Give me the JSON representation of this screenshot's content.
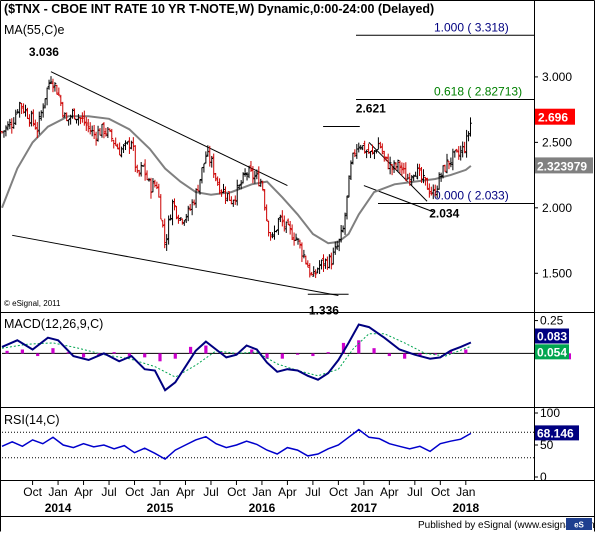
{
  "chart_data": [
    {
      "type": "candlestick",
      "title": "($TNX - CBOE INT RATE 10 YR T-NOTE,W) Dynamic,0:00-24:00 (Delayed)",
      "overlay_label": "MA(55,C)e",
      "copyright": "© eSignal, 2011",
      "ylim": [
        1.25,
        3.45
      ],
      "y_ticks": [
        "3.000",
        "2.500",
        "2.000",
        "1.500"
      ],
      "y_tick_values": [
        3.0,
        2.5,
        2.0,
        1.5
      ],
      "last_price": "2.696",
      "last_price_value": 2.696,
      "ma_value": "2.323979",
      "ma_value_num": 2.324,
      "ma_color": "#808080",
      "up_color": "#000000",
      "down_color": "#cc0000",
      "annotations": [
        {
          "text": "3.036",
          "t": 2013.93,
          "price": 3.036
        },
        {
          "text": "2.621",
          "t": 2016.96,
          "price": 2.621
        },
        {
          "text": "1.336",
          "t": 2016.5,
          "price": 1.336
        },
        {
          "text": "2.034",
          "t": 2017.7,
          "price": 2.034
        }
      ],
      "fibonacci": [
        {
          "label": "1.000 ( 3.318)",
          "value": 3.318,
          "color": "#000080"
        },
        {
          "label": "0.618 ( 2.82713)",
          "value": 2.82713,
          "color": "#008000"
        },
        {
          "label": "0.000 ( 2.033)",
          "value": 2.033,
          "color": "#000080"
        }
      ],
      "price_path": [
        [
          2013.45,
          2.58
        ],
        [
          2013.55,
          2.65
        ],
        [
          2013.62,
          2.8
        ],
        [
          2013.7,
          2.72
        ],
        [
          2013.8,
          2.6
        ],
        [
          2013.87,
          2.85
        ],
        [
          2013.93,
          3.0
        ],
        [
          2014.0,
          2.88
        ],
        [
          2014.08,
          2.65
        ],
        [
          2014.15,
          2.73
        ],
        [
          2014.25,
          2.66
        ],
        [
          2014.35,
          2.56
        ],
        [
          2014.45,
          2.6
        ],
        [
          2014.52,
          2.54
        ],
        [
          2014.6,
          2.44
        ],
        [
          2014.67,
          2.46
        ],
        [
          2014.72,
          2.52
        ],
        [
          2014.78,
          2.22
        ],
        [
          2014.83,
          2.32
        ],
        [
          2014.9,
          2.16
        ],
        [
          2014.97,
          2.18
        ],
        [
          2015.05,
          1.72
        ],
        [
          2015.12,
          2.04
        ],
        [
          2015.2,
          1.92
        ],
        [
          2015.28,
          1.96
        ],
        [
          2015.35,
          2.1
        ],
        [
          2015.45,
          2.4
        ],
        [
          2015.5,
          2.36
        ],
        [
          2015.57,
          2.18
        ],
        [
          2015.63,
          2.12
        ],
        [
          2015.7,
          2.06
        ],
        [
          2015.77,
          2.14
        ],
        [
          2015.85,
          2.27
        ],
        [
          2015.92,
          2.24
        ],
        [
          2016.0,
          2.2
        ],
        [
          2016.05,
          1.9
        ],
        [
          2016.1,
          1.75
        ],
        [
          2016.17,
          1.92
        ],
        [
          2016.25,
          1.83
        ],
        [
          2016.33,
          1.78
        ],
        [
          2016.42,
          1.62
        ],
        [
          2016.5,
          1.45
        ],
        [
          2016.55,
          1.55
        ],
        [
          2016.6,
          1.58
        ],
        [
          2016.68,
          1.6
        ],
        [
          2016.75,
          1.72
        ],
        [
          2016.8,
          1.84
        ],
        [
          2016.87,
          2.3
        ],
        [
          2016.92,
          2.46
        ],
        [
          2016.96,
          2.5
        ],
        [
          2017.0,
          2.45
        ],
        [
          2017.08,
          2.4
        ],
        [
          2017.15,
          2.5
        ],
        [
          2017.2,
          2.37
        ],
        [
          2017.28,
          2.3
        ],
        [
          2017.35,
          2.33
        ],
        [
          2017.42,
          2.22
        ],
        [
          2017.5,
          2.3
        ],
        [
          2017.57,
          2.21
        ],
        [
          2017.63,
          2.16
        ],
        [
          2017.68,
          2.1
        ],
        [
          2017.73,
          2.2
        ],
        [
          2017.8,
          2.32
        ],
        [
          2017.87,
          2.38
        ],
        [
          2017.93,
          2.4
        ],
        [
          2018.0,
          2.48
        ],
        [
          2018.05,
          2.66
        ]
      ],
      "ma_path": [
        [
          2013.45,
          2.0
        ],
        [
          2013.6,
          2.3
        ],
        [
          2013.75,
          2.5
        ],
        [
          2013.9,
          2.62
        ],
        [
          2014.1,
          2.7
        ],
        [
          2014.3,
          2.7
        ],
        [
          2014.5,
          2.68
        ],
        [
          2014.7,
          2.6
        ],
        [
          2014.9,
          2.45
        ],
        [
          2015.05,
          2.3
        ],
        [
          2015.2,
          2.2
        ],
        [
          2015.35,
          2.12
        ],
        [
          2015.5,
          2.1
        ],
        [
          2015.7,
          2.12
        ],
        [
          2015.9,
          2.18
        ],
        [
          2016.05,
          2.2
        ],
        [
          2016.2,
          2.08
        ],
        [
          2016.35,
          1.95
        ],
        [
          2016.5,
          1.8
        ],
        [
          2016.65,
          1.73
        ],
        [
          2016.75,
          1.74
        ],
        [
          2016.85,
          1.8
        ],
        [
          2016.95,
          1.95
        ],
        [
          2017.1,
          2.12
        ],
        [
          2017.3,
          2.18
        ],
        [
          2017.5,
          2.2
        ],
        [
          2017.7,
          2.22
        ],
        [
          2017.85,
          2.25
        ],
        [
          2018.0,
          2.29
        ],
        [
          2018.05,
          2.32
        ]
      ],
      "trendlines": [
        {
          "from": [
            2013.93,
            3.04
          ],
          "to": [
            2016.25,
            2.17
          ]
        },
        {
          "from": [
            2013.55,
            1.79
          ],
          "to": [
            2016.75,
            1.33
          ]
        },
        {
          "from": [
            2017.05,
            2.5
          ],
          "to": [
            2017.62,
            2.05
          ]
        },
        {
          "from": [
            2017.0,
            2.17
          ],
          "to": [
            2017.68,
            1.97
          ]
        }
      ],
      "marker_lines": [
        {
          "from": [
            2016.6,
            2.621
          ],
          "to": [
            2016.96,
            2.621
          ]
        },
        {
          "from": [
            2016.45,
            1.34
          ],
          "to": [
            2016.85,
            1.34
          ]
        }
      ]
    },
    {
      "type": "line",
      "title": "MACD(12,26,9,C)",
      "ylim": [
        -0.4,
        0.3
      ],
      "y_ticks": [
        "0.25"
      ],
      "y_tick_values": [
        0.25
      ],
      "value_labels": [
        {
          "text": "0.083",
          "value": 0.083,
          "bg": "#000080"
        },
        {
          "text": "0.054",
          "value": 0.054,
          "bg": "#00a550"
        }
      ],
      "macd_color": "#000080",
      "signal_color": "#00a550",
      "histogram_color": "#cc00cc",
      "macd_path": [
        [
          2013.45,
          0.05
        ],
        [
          2013.6,
          0.1
        ],
        [
          2013.75,
          0.03
        ],
        [
          2013.9,
          0.12
        ],
        [
          2014.0,
          0.1
        ],
        [
          2014.15,
          -0.02
        ],
        [
          2014.3,
          -0.05
        ],
        [
          2014.45,
          0.0
        ],
        [
          2014.6,
          -0.06
        ],
        [
          2014.72,
          -0.02
        ],
        [
          2014.85,
          -0.12
        ],
        [
          2014.95,
          -0.13
        ],
        [
          2015.05,
          -0.28
        ],
        [
          2015.15,
          -0.22
        ],
        [
          2015.25,
          -0.1
        ],
        [
          2015.35,
          0.02
        ],
        [
          2015.45,
          0.09
        ],
        [
          2015.55,
          0.03
        ],
        [
          2015.65,
          -0.03
        ],
        [
          2015.75,
          -0.01
        ],
        [
          2015.85,
          0.06
        ],
        [
          2015.95,
          0.03
        ],
        [
          2016.05,
          -0.07
        ],
        [
          2016.15,
          -0.14
        ],
        [
          2016.25,
          -0.12
        ],
        [
          2016.35,
          -0.13
        ],
        [
          2016.45,
          -0.17
        ],
        [
          2016.55,
          -0.2
        ],
        [
          2016.65,
          -0.15
        ],
        [
          2016.75,
          -0.05
        ],
        [
          2016.85,
          0.08
        ],
        [
          2016.95,
          0.22
        ],
        [
          2017.05,
          0.2
        ],
        [
          2017.2,
          0.12
        ],
        [
          2017.35,
          0.03
        ],
        [
          2017.5,
          -0.01
        ],
        [
          2017.65,
          -0.04
        ],
        [
          2017.75,
          -0.03
        ],
        [
          2017.85,
          0.02
        ],
        [
          2017.95,
          0.05
        ],
        [
          2018.05,
          0.083
        ]
      ],
      "signal_path": [
        [
          2013.45,
          0.04
        ],
        [
          2013.7,
          0.07
        ],
        [
          2013.95,
          0.08
        ],
        [
          2014.2,
          0.04
        ],
        [
          2014.45,
          -0.01
        ],
        [
          2014.7,
          -0.04
        ],
        [
          2014.95,
          -0.1
        ],
        [
          2015.15,
          -0.18
        ],
        [
          2015.35,
          -0.09
        ],
        [
          2015.55,
          0.02
        ],
        [
          2015.75,
          0.0
        ],
        [
          2015.95,
          0.01
        ],
        [
          2016.15,
          -0.08
        ],
        [
          2016.35,
          -0.13
        ],
        [
          2016.55,
          -0.17
        ],
        [
          2016.75,
          -0.12
        ],
        [
          2016.9,
          0.04
        ],
        [
          2017.05,
          0.15
        ],
        [
          2017.2,
          0.15
        ],
        [
          2017.4,
          0.08
        ],
        [
          2017.6,
          0.0
        ],
        [
          2017.8,
          -0.02
        ],
        [
          2018.05,
          0.054
        ]
      ],
      "histogram": [
        [
          2013.5,
          0.02
        ],
        [
          2013.65,
          0.03
        ],
        [
          2013.8,
          -0.02
        ],
        [
          2013.95,
          0.04
        ],
        [
          2014.1,
          0.01
        ],
        [
          2014.25,
          -0.03
        ],
        [
          2014.4,
          -0.02
        ],
        [
          2014.55,
          0.01
        ],
        [
          2014.7,
          -0.02
        ],
        [
          2014.85,
          -0.03
        ],
        [
          2015.0,
          -0.06
        ],
        [
          2015.15,
          -0.04
        ],
        [
          2015.3,
          0.05
        ],
        [
          2015.45,
          0.06
        ],
        [
          2015.6,
          0.01
        ],
        [
          2015.75,
          -0.01
        ],
        [
          2015.9,
          0.03
        ],
        [
          2016.05,
          -0.04
        ],
        [
          2016.2,
          -0.04
        ],
        [
          2016.35,
          -0.01
        ],
        [
          2016.5,
          -0.02
        ],
        [
          2016.65,
          0.01
        ],
        [
          2016.8,
          0.08
        ],
        [
          2016.95,
          0.1
        ],
        [
          2017.1,
          0.04
        ],
        [
          2017.25,
          -0.02
        ],
        [
          2017.4,
          -0.04
        ],
        [
          2017.55,
          -0.02
        ],
        [
          2017.7,
          -0.01
        ],
        [
          2017.85,
          0.02
        ],
        [
          2018.0,
          0.03
        ]
      ]
    },
    {
      "type": "line",
      "title": "RSI(14,C)",
      "ylim": [
        0,
        100
      ],
      "y_ticks": [
        "100",
        "50",
        "0"
      ],
      "y_tick_values": [
        100,
        50,
        0
      ],
      "value_label": {
        "text": "68.146",
        "value": 68.146,
        "bg": "#000080"
      },
      "line_color": "#0000cc",
      "rsi_path": [
        [
          2013.45,
          48
        ],
        [
          2013.55,
          55
        ],
        [
          2013.65,
          48
        ],
        [
          2013.75,
          58
        ],
        [
          2013.85,
          52
        ],
        [
          2013.95,
          62
        ],
        [
          2014.05,
          50
        ],
        [
          2014.15,
          46
        ],
        [
          2014.25,
          52
        ],
        [
          2014.35,
          47
        ],
        [
          2014.45,
          50
        ],
        [
          2014.55,
          44
        ],
        [
          2014.65,
          49
        ],
        [
          2014.75,
          38
        ],
        [
          2014.85,
          45
        ],
        [
          2014.95,
          37
        ],
        [
          2015.05,
          28
        ],
        [
          2015.15,
          42
        ],
        [
          2015.25,
          50
        ],
        [
          2015.35,
          58
        ],
        [
          2015.45,
          63
        ],
        [
          2015.55,
          52
        ],
        [
          2015.65,
          46
        ],
        [
          2015.75,
          50
        ],
        [
          2015.85,
          56
        ],
        [
          2015.95,
          51
        ],
        [
          2016.05,
          42
        ],
        [
          2016.15,
          36
        ],
        [
          2016.25,
          46
        ],
        [
          2016.35,
          42
        ],
        [
          2016.45,
          33
        ],
        [
          2016.55,
          36
        ],
        [
          2016.65,
          44
        ],
        [
          2016.75,
          50
        ],
        [
          2016.85,
          62
        ],
        [
          2016.95,
          74
        ],
        [
          2017.05,
          62
        ],
        [
          2017.15,
          60
        ],
        [
          2017.25,
          52
        ],
        [
          2017.35,
          48
        ],
        [
          2017.45,
          44
        ],
        [
          2017.55,
          48
        ],
        [
          2017.65,
          40
        ],
        [
          2017.75,
          52
        ],
        [
          2017.85,
          56
        ],
        [
          2017.95,
          59
        ],
        [
          2018.05,
          68.146
        ]
      ]
    }
  ],
  "x_axis": {
    "month_labels": [
      {
        "text": "Oct",
        "t": 2013.75
      },
      {
        "text": "Jan",
        "t": 2014.0
      },
      {
        "text": "Apr",
        "t": 2014.25
      },
      {
        "text": "Jul",
        "t": 2014.5
      },
      {
        "text": "Oct",
        "t": 2014.75
      },
      {
        "text": "Jan",
        "t": 2015.0
      },
      {
        "text": "Apr",
        "t": 2015.25
      },
      {
        "text": "Jul",
        "t": 2015.5
      },
      {
        "text": "Oct",
        "t": 2015.75
      },
      {
        "text": "Jan",
        "t": 2016.0
      },
      {
        "text": "Apr",
        "t": 2016.25
      },
      {
        "text": "Jul",
        "t": 2016.5
      },
      {
        "text": "Oct",
        "t": 2016.75
      },
      {
        "text": "Jan",
        "t": 2017.0
      },
      {
        "text": "Apr",
        "t": 2017.25
      },
      {
        "text": "Jul",
        "t": 2017.5
      },
      {
        "text": "Oct",
        "t": 2017.75
      },
      {
        "text": "Jan",
        "t": 2018.0
      }
    ],
    "year_labels": [
      {
        "text": "2014",
        "t": 2014.0
      },
      {
        "text": "2015",
        "t": 2015.0
      },
      {
        "text": "2016",
        "t": 2016.0
      },
      {
        "text": "2017",
        "t": 2017.0
      },
      {
        "text": "2018",
        "t": 2018.0
      }
    ]
  },
  "footer": {
    "text": "Published by eSignal (www.esignal.com)"
  }
}
